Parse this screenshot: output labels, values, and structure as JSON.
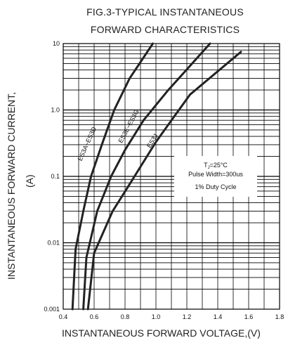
{
  "chart_data": {
    "type": "line",
    "title_line1": "FIG.3-TYPICAL INSTANTANEOUS",
    "title_line2": "FORWARD CHARACTERISTICS",
    "xlabel": "INSTANTANEOUS FORWARD VOLTAGE,(V)",
    "ylabel_line1": "INSTANTANEOUS FORWARD CURRENT,",
    "ylabel_line2": "(A)",
    "xlim": [
      0.4,
      1.8
    ],
    "ylim": [
      0.001,
      10
    ],
    "yscale": "log",
    "grid": true,
    "x_ticks": [
      "0.4",
      "0.6",
      "0.8",
      "1.0",
      "1.2",
      "1.4",
      "1.6",
      "1.8"
    ],
    "y_ticks": [
      "0.001",
      "0.01",
      "0.1",
      "1.0",
      "10"
    ],
    "annotation": {
      "line1": "T",
      "line1_sub": "J",
      "line1_rest": "=25°C",
      "line2": "Pulse Width=300us",
      "line3": "1% Duty Cycle"
    },
    "series": [
      {
        "name": "ES3A~ES3D",
        "points": [
          [
            0.46,
            0.001
          ],
          [
            0.48,
            0.008
          ],
          [
            0.53,
            0.03
          ],
          [
            0.58,
            0.1
          ],
          [
            0.65,
            0.3
          ],
          [
            0.73,
            1.0
          ],
          [
            0.83,
            3.0
          ],
          [
            0.98,
            10
          ]
        ]
      },
      {
        "name": "ES3E~ES3G",
        "points": [
          [
            0.53,
            0.001
          ],
          [
            0.55,
            0.006
          ],
          [
            0.62,
            0.03
          ],
          [
            0.71,
            0.1
          ],
          [
            0.8,
            0.25
          ],
          [
            0.92,
            0.7
          ],
          [
            1.08,
            2.0
          ],
          [
            1.35,
            10
          ]
        ]
      },
      {
        "name": "ES3J",
        "points": [
          [
            0.56,
            0.001
          ],
          [
            0.6,
            0.007
          ],
          [
            0.72,
            0.03
          ],
          [
            0.82,
            0.07
          ],
          [
            1.0,
            0.33
          ],
          [
            1.22,
            1.7
          ],
          [
            1.55,
            7.5
          ]
        ]
      }
    ]
  }
}
